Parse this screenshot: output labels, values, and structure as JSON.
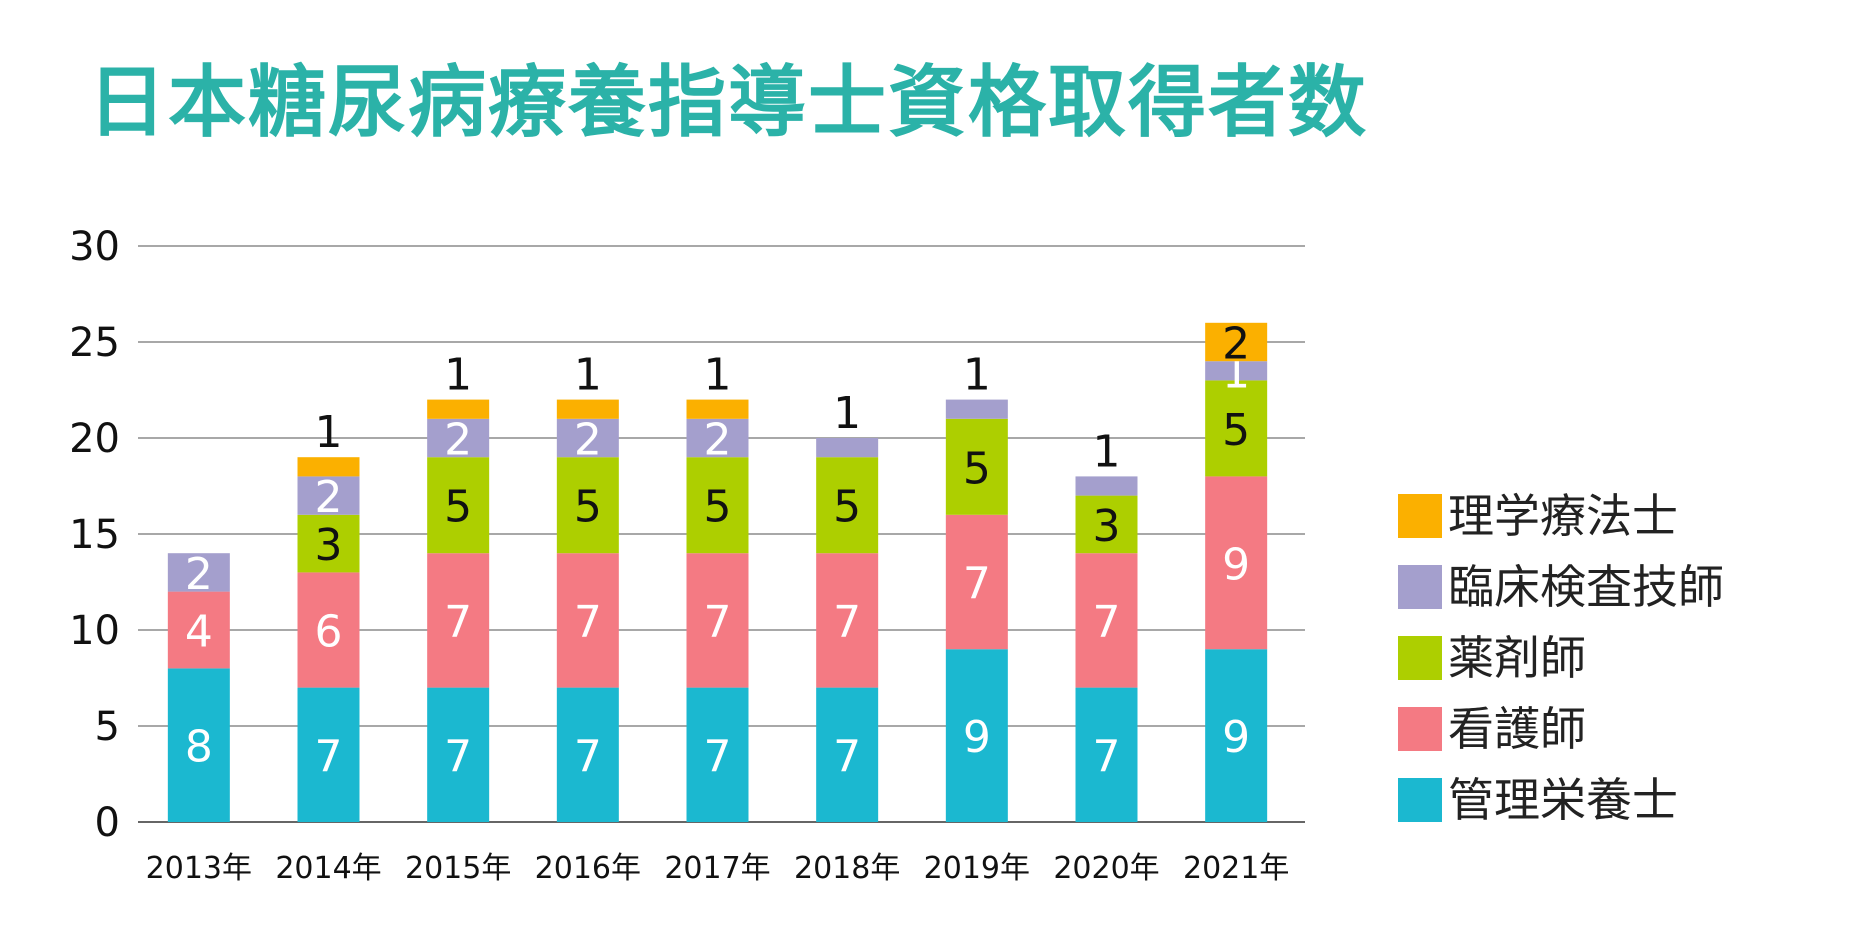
{
  "chart_data": {
    "type": "bar",
    "stacked": true,
    "title": "日本糖尿病療養指導士資格取得者数",
    "categories": [
      "2013年",
      "2014年",
      "2015年",
      "2016年",
      "2017年",
      "2018年",
      "2019年",
      "2020年",
      "2021年"
    ],
    "ylim": [
      0,
      30
    ],
    "yticks": [
      0,
      5,
      10,
      15,
      20,
      25,
      30
    ],
    "grid": true,
    "legend_position": "right",
    "series": [
      {
        "name": "管理栄養士",
        "color": "#1bb8d0",
        "values": [
          8,
          7,
          7,
          7,
          7,
          7,
          9,
          7,
          9
        ]
      },
      {
        "name": "看護師",
        "color": "#f47a83",
        "values": [
          4,
          6,
          7,
          7,
          7,
          7,
          7,
          7,
          9
        ]
      },
      {
        "name": "薬剤師",
        "color": "#adcf00",
        "values": [
          0,
          3,
          5,
          5,
          5,
          5,
          5,
          3,
          5
        ]
      },
      {
        "name": "臨床検査技師",
        "color": "#a49fcd",
        "values": [
          2,
          2,
          2,
          2,
          2,
          1,
          1,
          1,
          1
        ]
      },
      {
        "name": "理学療法士",
        "color": "#fbb000",
        "values": [
          0,
          1,
          1,
          1,
          1,
          0,
          0,
          0,
          2
        ]
      }
    ]
  }
}
